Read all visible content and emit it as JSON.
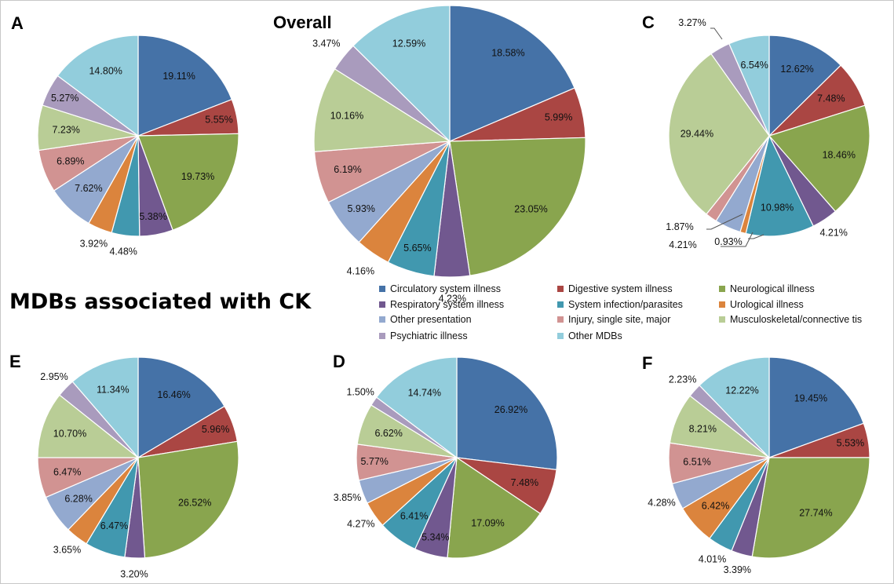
{
  "figure": {
    "section_title": "MDBs associated with CK"
  },
  "categories": [
    {
      "name": "Circulatory system illness",
      "color": "#4572a7"
    },
    {
      "name": "Digestive system illness",
      "color": "#aa4643"
    },
    {
      "name": "Neurological illness",
      "color": "#89a54e"
    },
    {
      "name": "Respiratory system illness",
      "color": "#71588f"
    },
    {
      "name": "System infection/parasites",
      "color": "#4198af"
    },
    {
      "name": "Urological illness",
      "color": "#db843d"
    },
    {
      "name": "Other presentation",
      "color": "#93a9cf"
    },
    {
      "name": "Injury, single site, major",
      "color": "#d19392"
    },
    {
      "name": "Musculoskeletal/connective tis",
      "color": "#b9cd96"
    },
    {
      "name": "Psychiatric illness",
      "color": "#a99bbd"
    },
    {
      "name": "Other MDBs",
      "color": "#92cddc"
    }
  ],
  "chart_data": [
    {
      "type": "pie",
      "title": "A",
      "labels": [
        "19.11%",
        "5.55%",
        "19.73%",
        "5.38%",
        "4.48%",
        "3.92%",
        "7.62%",
        "6.89%",
        "7.23%",
        "5.27%",
        "14.80%"
      ],
      "values": [
        19.11,
        5.55,
        19.73,
        5.38,
        4.48,
        3.92,
        7.62,
        6.89,
        7.23,
        5.27,
        14.8
      ]
    },
    {
      "type": "pie",
      "title": "Overall",
      "labels": [
        "18.58%",
        "5.99%",
        "23.05%",
        "4.23%",
        "5.65%",
        "4.16%",
        "5.93%",
        "6.19%",
        "10.16%",
        "3.47%",
        "12.59%"
      ],
      "values": [
        18.58,
        5.99,
        23.05,
        4.23,
        5.65,
        4.16,
        5.93,
        6.19,
        10.16,
        3.47,
        12.59
      ]
    },
    {
      "type": "pie",
      "title": "C",
      "labels": [
        "12.62%",
        "7.48%",
        "18.46%",
        "4.21%",
        "10.98%",
        "0.93%",
        "4.21%",
        "1.87%",
        "29.44%",
        "3.27%",
        "6.54%"
      ],
      "values": [
        12.62,
        7.48,
        18.46,
        4.21,
        10.98,
        0.93,
        4.21,
        1.87,
        29.44,
        3.27,
        6.54
      ]
    },
    {
      "type": "pie",
      "title": "E",
      "labels": [
        "16.46%",
        "5.96%",
        "26.52%",
        "3.20%",
        "6.47%",
        "3.65%",
        "6.28%",
        "6.47%",
        "10.70%",
        "2.95%",
        "11.34%"
      ],
      "values": [
        16.46,
        5.96,
        26.52,
        3.2,
        6.47,
        3.65,
        6.28,
        6.47,
        10.7,
        2.95,
        11.34
      ]
    },
    {
      "type": "pie",
      "title": "D",
      "labels": [
        "26.92%",
        "7.48%",
        "17.09%",
        "5.34%",
        "6.41%",
        "4.27%",
        "3.85%",
        "5.77%",
        "6.62%",
        "1.50%",
        "14.74%"
      ],
      "values": [
        26.92,
        7.48,
        17.09,
        5.34,
        6.41,
        4.27,
        3.85,
        5.77,
        6.62,
        1.5,
        14.74
      ]
    },
    {
      "type": "pie",
      "title": "F",
      "labels": [
        "19.45%",
        "5.53%",
        "27.74%",
        "3.39%",
        "4.01%",
        "6.42%",
        "4.28%",
        "6.51%",
        "8.21%",
        "2.23%",
        "12.22%"
      ],
      "values": [
        19.45,
        5.53,
        27.74,
        3.39,
        4.01,
        6.42,
        4.28,
        6.51,
        8.21,
        2.23,
        12.22
      ]
    }
  ]
}
